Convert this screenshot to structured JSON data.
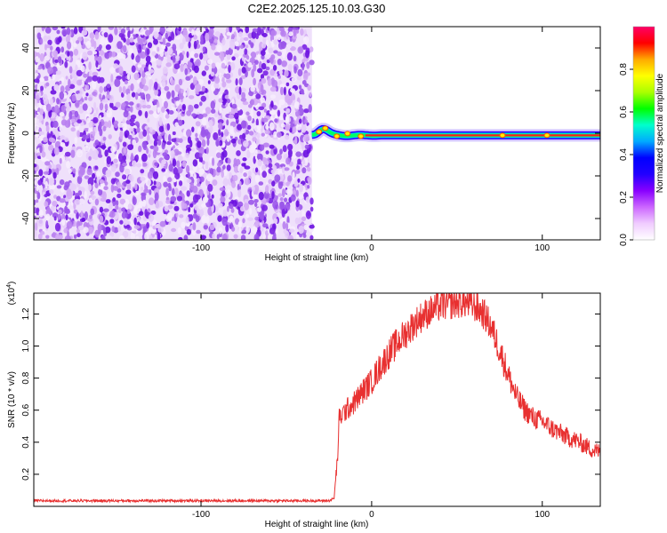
{
  "figure_title": "C2E2.2025.125.10.03.G30",
  "chart_data": [
    {
      "type": "heatmap",
      "xlabel": "Height of straight line (km)",
      "ylabel": "Frequency (Hz)",
      "xlim": [
        -198,
        134
      ],
      "ylim": [
        -50,
        50
      ],
      "x_ticks": [
        -100,
        0,
        100
      ],
      "x_tick_labels": [
        "-100",
        "0",
        "100"
      ],
      "y_ticks": [
        -40,
        -20,
        0,
        20,
        40
      ],
      "y_tick_labels": [
        "-40",
        "-20",
        "0",
        "20",
        "40"
      ],
      "noise_region_x": [
        -198,
        -35
      ],
      "signal_region_x": [
        -35,
        134
      ],
      "signal_frequency_hz": -1,
      "colorbar": {
        "label": "Normalized spectral amplitude",
        "range": [
          0,
          1
        ],
        "ticks": [
          0.0,
          0.2,
          0.4,
          0.6,
          0.8
        ],
        "tick_labels": [
          "0.0",
          "0.2",
          "0.4",
          "0.6",
          "0.8"
        ],
        "colors": [
          "#ffffff",
          "#f0ccff",
          "#cc66ff",
          "#8800ff",
          "#2200ff",
          "#0000ff",
          "#00aaff",
          "#00ffcc",
          "#00ff00",
          "#aaff00",
          "#ffff00",
          "#ffaa00",
          "#ff0000",
          "#ff0066"
        ]
      },
      "grid": false
    },
    {
      "type": "line",
      "xlabel": "Height of straight line (km)",
      "ylabel": "SNR (10 * v/v)",
      "scale_note": "(x10",
      "scale_exponent": "4",
      "xlim": [
        -198,
        134
      ],
      "ylim": [
        0,
        1.33
      ],
      "x_ticks": [
        -100,
        0,
        100
      ],
      "x_tick_labels": [
        "-100",
        "0",
        "100"
      ],
      "y_ticks": [
        0.2,
        0.4,
        0.6,
        0.8,
        1.0,
        1.2
      ],
      "y_tick_labels": [
        "0.2",
        "0.4",
        "0.6",
        "0.8",
        "1.0",
        "1.2"
      ],
      "line_color": "#e83030",
      "series": [
        {
          "x": [
            -198,
            -180,
            -160,
            -140,
            -120,
            -100,
            -80,
            -60,
            -40,
            -25,
            -22,
            -20,
            -19,
            -15,
            -10,
            -5,
            0,
            5,
            10,
            15,
            20,
            25,
            30,
            35,
            40,
            45,
            50,
            55,
            60,
            65,
            70,
            75,
            80,
            85,
            90,
            95,
            100,
            105,
            110,
            115,
            120,
            125,
            130,
            134
          ],
          "y": [
            0.035,
            0.035,
            0.035,
            0.035,
            0.035,
            0.035,
            0.035,
            0.035,
            0.035,
            0.035,
            0.05,
            0.3,
            0.55,
            0.6,
            0.65,
            0.72,
            0.78,
            0.87,
            0.95,
            1.02,
            1.08,
            1.14,
            1.19,
            1.22,
            1.25,
            1.26,
            1.27,
            1.27,
            1.25,
            1.21,
            1.12,
            0.98,
            0.82,
            0.68,
            0.6,
            0.55,
            0.53,
            0.49,
            0.46,
            0.43,
            0.41,
            0.38,
            0.35,
            0.34
          ]
        }
      ],
      "grid": false
    }
  ]
}
